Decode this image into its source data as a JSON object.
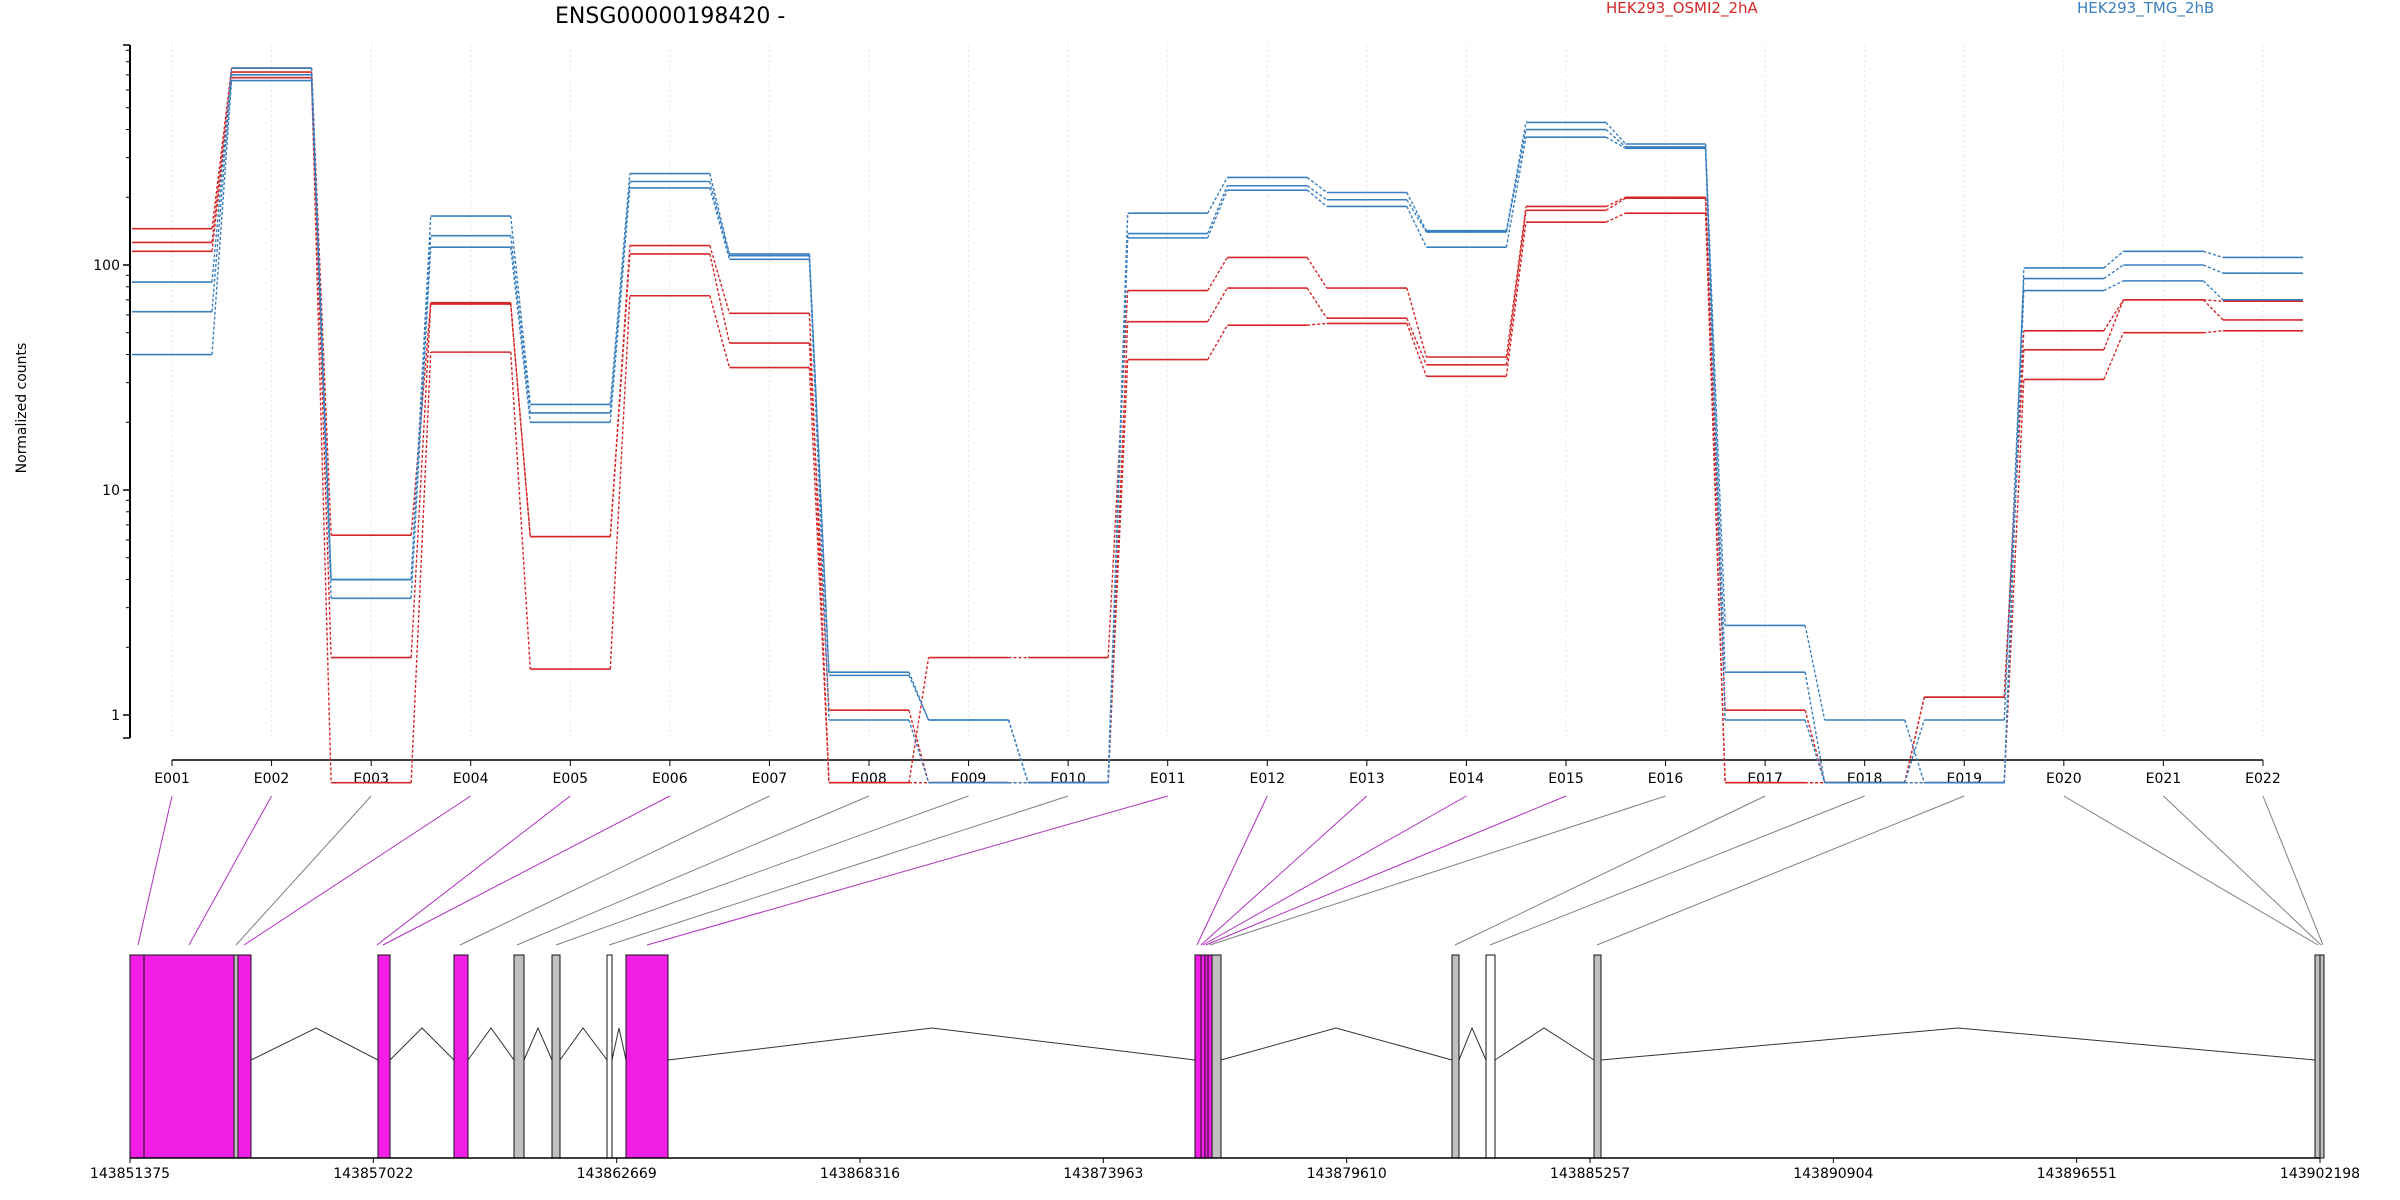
{
  "chart_data": {
    "type": "line",
    "title": "ENSG00000198420 -",
    "ylabel": "Normalized counts",
    "yscale": "log",
    "ylim": [
      0.5,
      900
    ],
    "yticks": [
      1,
      10,
      100
    ],
    "ytick_labels": [
      "1",
      "10",
      "100"
    ],
    "grid": "vertical dotted lines at each exon",
    "legend_placement": "top-right",
    "categories": [
      "E001",
      "E002",
      "E003",
      "E004",
      "E005",
      "E006",
      "E007",
      "E008",
      "E009",
      "E010",
      "E011",
      "E012",
      "E013",
      "E014",
      "E015",
      "E016",
      "E017",
      "E018",
      "E019",
      "E020",
      "E021",
      "E022"
    ],
    "groups": [
      {
        "name": "HEK293_OSMI2_2hA",
        "color": "#d62728"
      },
      {
        "name": "HEK293_TMG_2hB",
        "color": "#3a7fbf"
      }
    ],
    "series": [
      {
        "group": "HEK293_OSMI2_2hA",
        "values": [
          145,
          750,
          6.3,
          68,
          6.2,
          122,
          61,
          0.5,
          1.8,
          1.8,
          77,
          108,
          79,
          39,
          182,
          200,
          1.05,
          0.5,
          1.2,
          51,
          70,
          57
        ]
      },
      {
        "group": "HEK293_OSMI2_2hA",
        "values": [
          126,
          720,
          1.8,
          67,
          6.2,
          112,
          45,
          1.05,
          0.5,
          0.5,
          56,
          79,
          58,
          36,
          175,
          198,
          0.5,
          0.5,
          1.2,
          42,
          70,
          69
        ]
      },
      {
        "group": "HEK293_OSMI2_2hA",
        "values": [
          115,
          680,
          0.5,
          41,
          1.6,
          73,
          35,
          0.5,
          0.5,
          0.5,
          38,
          54,
          55,
          32,
          155,
          170,
          0.5,
          0.5,
          0.5,
          31,
          50,
          51
        ]
      },
      {
        "group": "HEK293_TMG_2hB",
        "values": [
          84,
          750,
          4.0,
          165,
          24,
          255,
          112,
          1.55,
          0.95,
          0.5,
          170,
          245,
          210,
          142,
          430,
          345,
          2.5,
          0.95,
          0.5,
          97,
          115,
          108
        ]
      },
      {
        "group": "HEK293_TMG_2hB",
        "values": [
          62,
          700,
          4.0,
          135,
          22,
          235,
          110,
          1.5,
          0.95,
          0.5,
          138,
          225,
          195,
          140,
          400,
          335,
          1.55,
          0.5,
          0.95,
          87,
          100,
          92
        ]
      },
      {
        "group": "HEK293_TMG_2hB",
        "values": [
          40,
          660,
          3.3,
          120,
          20,
          220,
          106,
          0.95,
          0.5,
          0.5,
          132,
          215,
          182,
          120,
          370,
          330,
          0.95,
          0.5,
          0.5,
          77,
          85,
          70
        ]
      }
    ],
    "gene_model": {
      "coordinate_labels": [
        "143851375",
        "143857022",
        "143862669",
        "143868316",
        "143873963",
        "143879610",
        "143885257",
        "143890904",
        "143896551",
        "143902198"
      ],
      "connectors": [
        {
          "exon": "E001",
          "highlight": true
        },
        {
          "exon": "E002",
          "highlight": true
        },
        {
          "exon": "E003",
          "highlight": false
        },
        {
          "exon": "E004",
          "highlight": true
        },
        {
          "exon": "E005",
          "highlight": true
        },
        {
          "exon": "E006",
          "highlight": true
        },
        {
          "exon": "E007",
          "highlight": false
        },
        {
          "exon": "E008",
          "highlight": false
        },
        {
          "exon": "E009",
          "highlight": false
        },
        {
          "exon": "E010",
          "highlight": false
        },
        {
          "exon": "E011",
          "highlight": true
        },
        {
          "exon": "E012",
          "highlight": true
        },
        {
          "exon": "E013",
          "highlight": true
        },
        {
          "exon": "E014",
          "highlight": true
        },
        {
          "exon": "E015",
          "highlight": true
        },
        {
          "exon": "E016",
          "highlight": false
        },
        {
          "exon": "E017",
          "highlight": false
        },
        {
          "exon": "E018",
          "highlight": false
        },
        {
          "exon": "E019",
          "highlight": false
        },
        {
          "exon": "E020",
          "highlight": false
        },
        {
          "exon": "E021",
          "highlight": false
        },
        {
          "exon": "E022",
          "highlight": false
        }
      ],
      "highlight_color": "#f21ee6",
      "normal_color": "#c0c0c0"
    }
  }
}
